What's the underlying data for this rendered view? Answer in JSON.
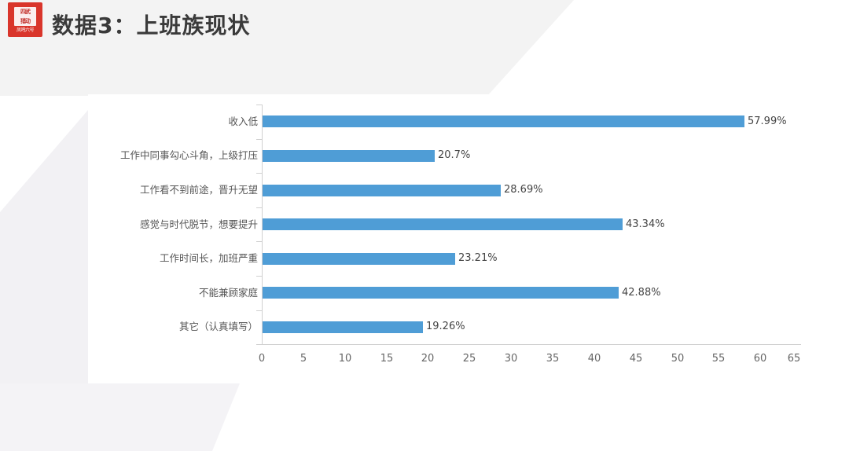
{
  "header": {
    "title": "数据3：上班族现状",
    "logo": {
      "line1": "四武",
      "line2": "猎动",
      "sub": "凤鸣六号",
      "color": "#d9352b"
    }
  },
  "chart_data": {
    "type": "bar",
    "orientation": "horizontal",
    "title": "数据3：上班族现状",
    "xlabel": "",
    "ylabel": "",
    "categories": [
      "收入低",
      "工作中同事勾心斗角，上级打压",
      "工作看不到前途，晋升无望",
      "感觉与时代脱节，想要提升",
      "工作时间长，加班严重",
      "不能兼顾家庭",
      "其它（认真填写）"
    ],
    "values": [
      57.99,
      20.7,
      28.69,
      43.34,
      23.21,
      42.88,
      19.26
    ],
    "value_labels": [
      "57.99%",
      "20.7%",
      "28.69%",
      "43.34%",
      "23.21%",
      "42.88%",
      "19.26%"
    ],
    "xlim": [
      0,
      65
    ],
    "xticks": [
      "0",
      "5",
      "10",
      "15",
      "20",
      "25",
      "30",
      "35",
      "40",
      "45",
      "50",
      "55",
      "60",
      "65"
    ],
    "grid": false,
    "legend": "none",
    "bar_color": "#4f9dd6"
  }
}
